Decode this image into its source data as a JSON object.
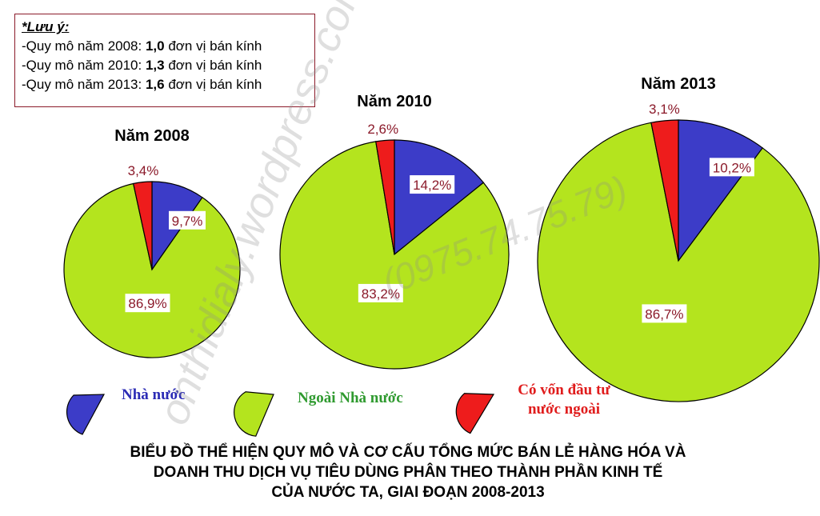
{
  "note": {
    "title": "*Lưu ý:",
    "lines": [
      {
        "prefix": "-Quy mô năm 2008: ",
        "value": "1,0",
        "suffix": " đơn vị bán kính"
      },
      {
        "prefix": "-Quy mô năm 2010: ",
        "value": "1,3",
        "suffix": " đơn vị bán kính"
      },
      {
        "prefix": "-Quy mô năm 2013: ",
        "value": "1,6",
        "suffix": " đơn vị bán kính"
      }
    ]
  },
  "legend": [
    {
      "label": "Nhà nước",
      "color": "#3c3cc8",
      "text_color": "#2b2bb5"
    },
    {
      "label": "Ngoài Nhà nước",
      "color": "#b4e41e",
      "text_color": "#2f9a2f"
    },
    {
      "label": "Có vốn đầu tư nước ngoài",
      "color": "#ee1c1c",
      "text_color": "#e01c1c"
    }
  ],
  "caption": {
    "line1": "BIỂU ĐỒ THỂ HIỆN QUY MÔ VÀ CƠ CẤU TỔNG MỨC BÁN LẺ HÀNG HÓA VÀ",
    "line2": "DOANH THU DỊCH VỤ TIÊU DÙNG PHÂN THEO THÀNH PHẦN KINH TẾ",
    "line3": "CỦA NƯỚC TA, GIAI ĐOẠN 2008-2013"
  },
  "watermark": {
    "site": "onthidialy.wordpress.com",
    "phone": "(0975.74.75.79)"
  },
  "chart_data": {
    "type": "pie",
    "series_names": [
      "Nhà nước",
      "Ngoài Nhà nước",
      "Có vốn đầu tư nước ngoài"
    ],
    "colors": [
      "#3c3cc8",
      "#b4e41e",
      "#ee1c1c"
    ],
    "charts": [
      {
        "title": "Năm 2008",
        "radius_units": 1.0,
        "values": [
          9.7,
          86.9,
          3.4
        ],
        "labels": [
          "9,7%",
          "86,9%",
          "3,4%"
        ]
      },
      {
        "title": "Năm 2010",
        "radius_units": 1.3,
        "values": [
          14.2,
          83.2,
          2.6
        ],
        "labels": [
          "14,2%",
          "83,2%",
          "2,6%"
        ]
      },
      {
        "title": "Năm 2013",
        "radius_units": 1.6,
        "values": [
          10.2,
          86.7,
          3.1
        ],
        "labels": [
          "10,2%",
          "86,7%",
          "3,1%"
        ]
      }
    ],
    "label_color": "#8b1a2a"
  }
}
